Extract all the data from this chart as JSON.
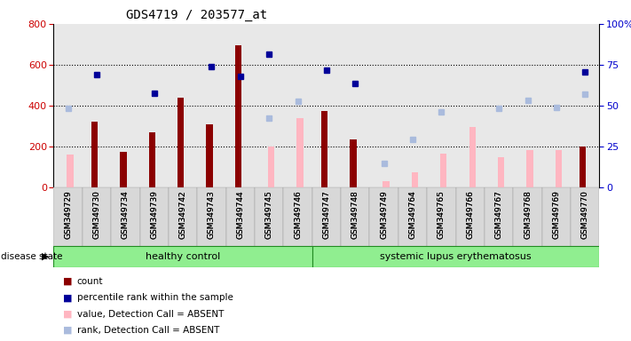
{
  "title": "GDS4719 / 203577_at",
  "samples": [
    "GSM349729",
    "GSM349730",
    "GSM349734",
    "GSM349739",
    "GSM349742",
    "GSM349743",
    "GSM349744",
    "GSM349745",
    "GSM349746",
    "GSM349747",
    "GSM349748",
    "GSM349749",
    "GSM349764",
    "GSM349765",
    "GSM349766",
    "GSM349767",
    "GSM349768",
    "GSM349769",
    "GSM349770"
  ],
  "count": [
    null,
    320,
    175,
    270,
    440,
    310,
    695,
    null,
    null,
    375,
    235,
    null,
    null,
    null,
    null,
    null,
    null,
    null,
    200
  ],
  "percentile_rank": [
    null,
    550,
    null,
    460,
    null,
    590,
    545,
    650,
    null,
    575,
    510,
    null,
    null,
    null,
    null,
    null,
    null,
    null,
    565
  ],
  "value_absent": [
    160,
    null,
    null,
    null,
    null,
    null,
    null,
    200,
    340,
    null,
    null,
    30,
    75,
    165,
    295,
    150,
    185,
    185,
    null
  ],
  "rank_absent": [
    385,
    null,
    null,
    null,
    null,
    null,
    null,
    340,
    420,
    null,
    null,
    120,
    235,
    370,
    null,
    385,
    425,
    390,
    455
  ],
  "ylim_left": [
    0,
    800
  ],
  "ylim_right": [
    0,
    100
  ],
  "yticks_left": [
    0,
    200,
    400,
    600,
    800
  ],
  "yticks_right": [
    0,
    25,
    50,
    75,
    100
  ],
  "color_count": "#8B0000",
  "color_percentile": "#000099",
  "color_value_absent": "#FFB6C1",
  "color_rank_absent": "#AABBDD",
  "legend_labels": [
    "count",
    "percentile rank within the sample",
    "value, Detection Call = ABSENT",
    "rank, Detection Call = ABSENT"
  ],
  "disease_state_label": "disease state",
  "healthy_label": "healthy control",
  "sle_label": "systemic lupus erythematosus",
  "background_color": "#ffffff",
  "bar_width": 0.25,
  "hc_count": 9,
  "sle_count": 10,
  "left_color": "#CC0000",
  "right_color": "#0000CC",
  "plot_bg": "#e8e8e8",
  "dotted_lines": [
    200,
    400,
    600
  ]
}
